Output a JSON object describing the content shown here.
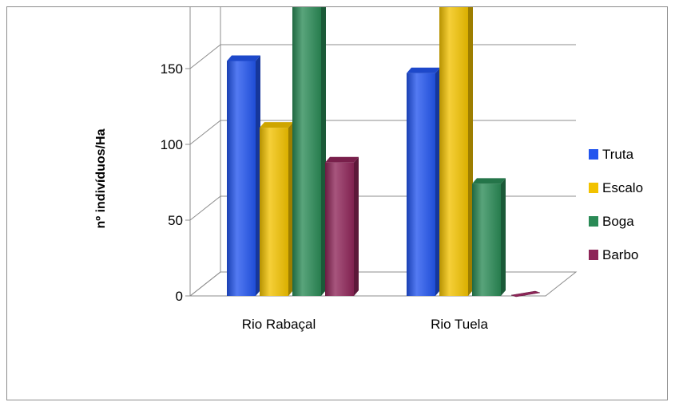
{
  "chart_data": {
    "type": "bar",
    "title": "",
    "xlabel": "",
    "ylabel": "nº indivíduos/Ha",
    "categories": [
      "Rio Rabaçal",
      "Rio Tuela"
    ],
    "series": [
      {
        "name": "Truta",
        "values": [
          155,
          147
        ],
        "color": "#2255ee"
      },
      {
        "name": "Escalo",
        "values": [
          111,
          194
        ],
        "color": "#f2c200"
      },
      {
        "name": "Boga",
        "values": [
          216,
          74
        ],
        "color": "#2a8a56"
      },
      {
        "name": "Barbo",
        "values": [
          88,
          0
        ],
        "color": "#8e2558"
      }
    ],
    "ylim": [
      0,
      250
    ],
    "yticks": [
      0,
      50,
      100,
      150,
      200,
      250
    ],
    "grid": true,
    "legend_position": "right",
    "style": "3d-clustered-cylinder"
  }
}
